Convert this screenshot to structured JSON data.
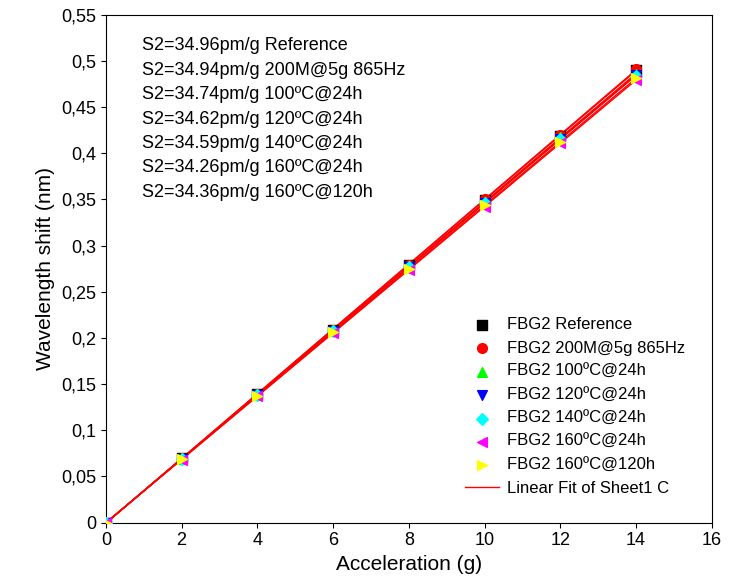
{
  "chart_data": {
    "type": "scatter",
    "x_label": "Acceleration (g)",
    "y_label": "Wavelength shift (nm)",
    "annotations": [
      "S2=34.96pm/g Reference",
      "S2=34.94pm/g 200M@5g 865Hz",
      "S2=34.74pm/g 100ºC@24h",
      "S2=34.62pm/g 120ºC@24h",
      "S2=34.59pm/g 140ºC@24h",
      "S2=34.26pm/g 160ºC@24h",
      "S2=34.36pm/g 160ºC@120h"
    ],
    "x": [
      0,
      2,
      4,
      6,
      8,
      10,
      12,
      14
    ],
    "series": [
      {
        "name": "FBG2 Reference",
        "color": "#000000",
        "marker": "square",
        "values": [
          0,
          0.07,
          0.139,
          0.209,
          0.279,
          0.349,
          0.419,
          0.49
        ]
      },
      {
        "name": "FBG2 200M@5g 865Hz",
        "color": "#ff0000",
        "marker": "circle",
        "values": [
          0,
          0.07,
          0.139,
          0.209,
          0.279,
          0.35,
          0.42,
          0.491
        ]
      },
      {
        "name": "FBG2 100ºC@24h",
        "color": "#00ff00",
        "marker": "triangle_up",
        "values": [
          0,
          0.069,
          0.138,
          0.208,
          0.278,
          0.347,
          0.417,
          0.486
        ]
      },
      {
        "name": "FBG2 120ºC@24h",
        "color": "#0000ff",
        "marker": "triangle_down",
        "values": [
          0,
          0.069,
          0.138,
          0.207,
          0.277,
          0.346,
          0.415,
          0.485
        ]
      },
      {
        "name": "FBG2 140ºC@24h",
        "color": "#00ffff",
        "marker": "diamond",
        "values": [
          0,
          0.069,
          0.138,
          0.207,
          0.277,
          0.346,
          0.415,
          0.484
        ]
      },
      {
        "name": "FBG2 160ºC@24h",
        "color": "#ff00ff",
        "marker": "triangle_left",
        "values": [
          0,
          0.068,
          0.137,
          0.205,
          0.274,
          0.342,
          0.411,
          0.479
        ]
      },
      {
        "name": "FBG2 160ºC@120h",
        "color": "#ffff00",
        "marker": "triangle_right",
        "values": [
          0,
          0.069,
          0.137,
          0.206,
          0.275,
          0.344,
          0.412,
          0.481
        ]
      }
    ],
    "fit": {
      "name": "Linear Fit of Sheet1 C",
      "color": "#ff0000",
      "line_style": "solid"
    },
    "xlim": [
      0,
      16
    ],
    "xticks": [
      0,
      2,
      4,
      6,
      8,
      10,
      12,
      14,
      16
    ],
    "ylim": [
      0,
      0.55
    ],
    "yticks": [
      {
        "value": 0,
        "label": "0"
      },
      {
        "value": 0.05,
        "label": "0,05"
      },
      {
        "value": 0.1,
        "label": "0,1"
      },
      {
        "value": 0.15,
        "label": "0,15"
      },
      {
        "value": 0.2,
        "label": "0,2"
      },
      {
        "value": 0.25,
        "label": "0,25"
      },
      {
        "value": 0.3,
        "label": "0,3"
      },
      {
        "value": 0.35,
        "label": "0,35"
      },
      {
        "value": 0.4,
        "label": "0,4"
      },
      {
        "value": 0.45,
        "label": "0,45"
      },
      {
        "value": 0.5,
        "label": "0,5"
      },
      {
        "value": 0.55,
        "label": "0,55"
      }
    ],
    "legend": "lower right",
    "grid": false
  }
}
